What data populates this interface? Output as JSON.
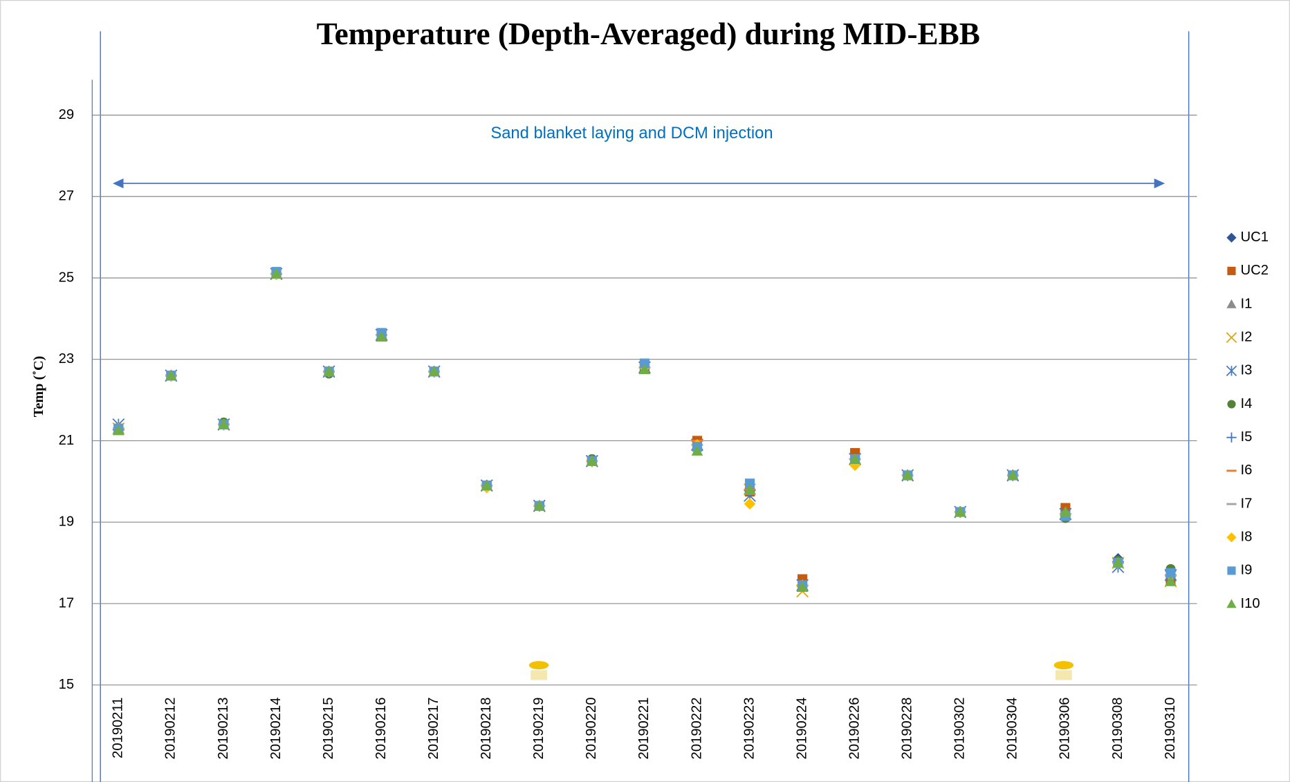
{
  "chart_data": {
    "type": "scatter",
    "title": "Temperature (Depth-Averaged) during MID-EBB",
    "y_label": "Temp (˚C)",
    "annotation": "Sand blanket laying and DCM injection",
    "categories": [
      "20190211",
      "20190212",
      "20190213",
      "20190214",
      "20190215",
      "20190216",
      "20190217",
      "20190218",
      "20190219",
      "20190220",
      "20190221",
      "20190222",
      "20190223",
      "20190224",
      "20190226",
      "20190228",
      "20190302",
      "20190304",
      "20190306",
      "20190308",
      "20190310"
    ],
    "ylim": [
      15,
      30
    ],
    "yticks": [
      15,
      17,
      19,
      21,
      23,
      25,
      27,
      29
    ],
    "grid": true,
    "legend": "right",
    "series": [
      {
        "name": "UC1",
        "color": "#2f5597",
        "marker": "diamond",
        "values": [
          21.3,
          22.6,
          21.4,
          25.1,
          22.7,
          23.6,
          22.7,
          19.9,
          19.4,
          20.5,
          22.8,
          20.9,
          19.8,
          17.45,
          20.55,
          20.15,
          19.25,
          20.15,
          19.2,
          18.1,
          17.8
        ]
      },
      {
        "name": "UC2",
        "color": "#c55a11",
        "marker": "square",
        "values": [
          21.3,
          22.6,
          21.4,
          25.1,
          22.7,
          23.6,
          22.7,
          19.9,
          19.4,
          20.5,
          22.8,
          21.0,
          19.75,
          17.6,
          20.7,
          20.15,
          19.25,
          20.15,
          19.35,
          18.0,
          17.55
        ]
      },
      {
        "name": "I1",
        "color": "#8c8c8c",
        "marker": "triangle",
        "values": [
          21.3,
          22.6,
          21.4,
          25.1,
          22.7,
          23.6,
          22.7,
          19.9,
          19.4,
          20.5,
          22.8,
          20.9,
          19.8,
          17.45,
          20.55,
          20.15,
          19.25,
          20.15,
          19.2,
          18.0,
          17.7
        ]
      },
      {
        "name": "I2",
        "color": "#e0a800",
        "marker": "x",
        "values": [
          21.3,
          22.6,
          21.4,
          25.1,
          22.7,
          23.6,
          22.7,
          19.9,
          19.4,
          20.5,
          22.8,
          20.9,
          19.8,
          17.3,
          20.55,
          20.15,
          19.25,
          20.15,
          19.2,
          18.0,
          17.55
        ]
      },
      {
        "name": "I3",
        "color": "#4a7cc2",
        "marker": "asterisk",
        "values": [
          21.4,
          22.6,
          21.4,
          25.1,
          22.7,
          23.6,
          22.7,
          19.9,
          19.4,
          20.5,
          22.8,
          20.9,
          19.65,
          17.45,
          20.55,
          20.15,
          19.25,
          20.15,
          19.2,
          17.9,
          17.7
        ]
      },
      {
        "name": "I4",
        "color": "#548235",
        "marker": "circle",
        "values": [
          21.3,
          22.6,
          21.45,
          25.1,
          22.65,
          23.6,
          22.7,
          19.9,
          19.4,
          20.55,
          22.8,
          20.9,
          19.8,
          17.45,
          20.55,
          20.15,
          19.25,
          20.15,
          19.1,
          18.05,
          17.85
        ]
      },
      {
        "name": "I5",
        "color": "#4472c4",
        "marker": "plus",
        "values": [
          21.3,
          22.6,
          21.4,
          25.1,
          22.7,
          23.6,
          22.7,
          19.9,
          19.4,
          20.5,
          22.8,
          20.9,
          19.8,
          17.45,
          20.55,
          20.15,
          19.25,
          20.15,
          19.2,
          18.0,
          17.7
        ]
      },
      {
        "name": "I6",
        "color": "#ed7d31",
        "marker": "dash",
        "values": [
          21.3,
          22.6,
          21.4,
          25.1,
          22.7,
          23.6,
          22.7,
          19.9,
          19.4,
          20.5,
          22.8,
          21.0,
          19.8,
          17.45,
          20.55,
          20.15,
          19.25,
          20.15,
          19.2,
          18.0,
          17.7
        ]
      },
      {
        "name": "I7",
        "color": "#a5a5a5",
        "marker": "dash",
        "values": [
          21.3,
          22.6,
          21.4,
          25.1,
          22.7,
          23.6,
          22.7,
          19.9,
          19.4,
          20.5,
          22.8,
          20.9,
          19.7,
          17.45,
          20.55,
          20.15,
          19.25,
          20.15,
          19.2,
          18.0,
          17.7
        ]
      },
      {
        "name": "I8",
        "color": "#ffc000",
        "marker": "diamond",
        "values": [
          21.3,
          22.6,
          21.4,
          25.1,
          22.7,
          23.6,
          22.7,
          19.85,
          19.4,
          20.5,
          22.8,
          20.9,
          19.45,
          17.45,
          20.4,
          20.15,
          19.25,
          20.15,
          19.2,
          18.0,
          17.7
        ]
      },
      {
        "name": "I9",
        "color": "#5b9bd5",
        "marker": "square",
        "values": [
          21.3,
          22.6,
          21.4,
          25.15,
          22.7,
          23.65,
          22.7,
          19.9,
          19.4,
          20.5,
          22.9,
          20.85,
          19.95,
          17.45,
          20.55,
          20.15,
          19.25,
          20.15,
          19.15,
          18.0,
          17.75
        ]
      },
      {
        "name": "I10",
        "color": "#70ad47",
        "marker": "triangle",
        "values": [
          21.25,
          22.6,
          21.4,
          25.1,
          22.7,
          23.55,
          22.7,
          19.9,
          19.4,
          20.5,
          22.75,
          20.75,
          19.8,
          17.4,
          20.55,
          20.15,
          19.25,
          20.15,
          19.25,
          18.0,
          17.55
        ]
      }
    ]
  }
}
